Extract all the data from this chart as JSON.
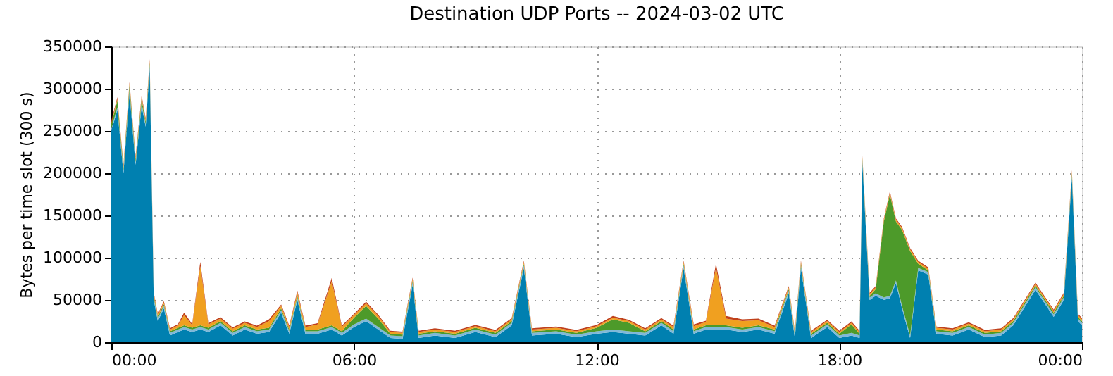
{
  "chart_data": {
    "type": "area",
    "stacked": true,
    "title": "Destination UDP Ports -- 2024-03-02 UTC",
    "ylabel": "Bytes per time slot (300 s)",
    "x": [
      0.0,
      0.15,
      0.3,
      0.45,
      0.6,
      0.75,
      0.85,
      0.95,
      1.05,
      1.15,
      1.3,
      1.45,
      1.65,
      1.8,
      2.0,
      2.2,
      2.4,
      2.7,
      3.0,
      3.3,
      3.6,
      3.9,
      4.2,
      4.4,
      4.6,
      4.8,
      5.1,
      5.45,
      5.7,
      6.0,
      6.3,
      6.6,
      6.9,
      7.2,
      7.45,
      7.6,
      8.0,
      8.5,
      9.0,
      9.5,
      9.9,
      10.2,
      10.4,
      11.0,
      11.5,
      12.0,
      12.4,
      12.8,
      13.2,
      13.6,
      13.9,
      14.15,
      14.4,
      14.7,
      14.95,
      15.2,
      15.6,
      16.0,
      16.4,
      16.75,
      16.9,
      17.05,
      17.3,
      17.7,
      18.0,
      18.3,
      18.5,
      18.57,
      18.75,
      18.9,
      19.1,
      19.25,
      19.4,
      19.55,
      19.75,
      19.95,
      20.2,
      20.4,
      20.8,
      21.2,
      21.6,
      22.0,
      22.3,
      22.85,
      23.3,
      23.55,
      23.75,
      23.9,
      24.0
    ],
    "series": [
      {
        "color": "#0080b0",
        "values": [
          250000,
          275000,
          200000,
          295000,
          210000,
          280000,
          255000,
          325000,
          50000,
          25000,
          40000,
          8000,
          12000,
          15000,
          12000,
          15000,
          12000,
          20000,
          8000,
          15000,
          10000,
          12000,
          35000,
          10000,
          50000,
          10000,
          10000,
          15000,
          8000,
          18000,
          25000,
          15000,
          5000,
          4000,
          68000,
          5000,
          8000,
          5000,
          12000,
          6000,
          20000,
          88000,
          8000,
          10000,
          6000,
          10000,
          12000,
          10000,
          8000,
          20000,
          10000,
          88000,
          10000,
          15000,
          15000,
          15000,
          12000,
          15000,
          10000,
          58000,
          5000,
          88000,
          5000,
          18000,
          5000,
          8000,
          5000,
          212000,
          50000,
          55000,
          50000,
          52000,
          70000,
          40000,
          5000,
          85000,
          80000,
          10000,
          8000,
          15000,
          6000,
          8000,
          20000,
          62000,
          30000,
          50000,
          195000,
          25000,
          20000
        ]
      },
      {
        "color": "#7fb8d8",
        "values": [
          3000,
          3000,
          3000,
          3000,
          3000,
          3000,
          3000,
          3000,
          3000,
          3000,
          3000,
          3000,
          3000,
          3000,
          3000,
          3000,
          3000,
          3000,
          3000,
          3000,
          3000,
          3000,
          3000,
          3000,
          3000,
          3000,
          3000,
          3000,
          3000,
          3000,
          3000,
          3000,
          3000,
          3000,
          3000,
          3000,
          3000,
          3000,
          3000,
          3000,
          3000,
          3000,
          3000,
          3000,
          3000,
          3000,
          3000,
          3000,
          3000,
          3000,
          3000,
          3000,
          3000,
          3000,
          3000,
          3000,
          3000,
          3000,
          3000,
          3000,
          3000,
          3000,
          3000,
          3000,
          3000,
          3000,
          3000,
          3000,
          3000,
          3000,
          3000,
          3000,
          3000,
          3000,
          3000,
          3000,
          3000,
          3000,
          3000,
          3000,
          3000,
          3000,
          3000,
          3000,
          3000,
          3000,
          3000,
          3000,
          3000
        ]
      },
      {
        "color": "#4d9a2a",
        "values": [
          5000,
          8000,
          3000,
          6000,
          3000,
          5000,
          3000,
          3000,
          2000,
          2000,
          2000,
          2000,
          2000,
          2000,
          2000,
          2000,
          2000,
          2000,
          2000,
          2000,
          2000,
          2000,
          2000,
          2000,
          2000,
          2000,
          2000,
          2000,
          2000,
          8000,
          15000,
          10000,
          2000,
          2000,
          2000,
          2000,
          2000,
          2000,
          2000,
          2000,
          2000,
          2000,
          2000,
          2000,
          2000,
          4000,
          12000,
          10000,
          2000,
          2000,
          2000,
          2000,
          2000,
          2000,
          2000,
          2000,
          2000,
          2000,
          2000,
          2000,
          2000,
          2000,
          2000,
          2000,
          2000,
          10000,
          2000,
          2000,
          2000,
          5000,
          90000,
          120000,
          70000,
          90000,
          100000,
          5000,
          2000,
          2000,
          2000,
          2000,
          2000,
          2000,
          2000,
          2000,
          2000,
          2000,
          2000,
          2000,
          2000
        ]
      },
      {
        "color": "#f0a020",
        "values": [
          2000,
          2000,
          2000,
          2000,
          2000,
          2000,
          2000,
          2000,
          2000,
          2000,
          2000,
          2000,
          3000,
          12000,
          3000,
          70000,
          4000,
          3000,
          3000,
          3000,
          3000,
          8000,
          3000,
          3000,
          4000,
          3000,
          6000,
          52000,
          5000,
          3000,
          3000,
          3000,
          2000,
          2000,
          2000,
          2000,
          2000,
          2000,
          2000,
          2000,
          2000,
          2000,
          2000,
          2000,
          2000,
          2000,
          2000,
          2000,
          2000,
          2000,
          3000,
          2000,
          4000,
          4000,
          68000,
          8000,
          8000,
          6000,
          3000,
          2000,
          2000,
          2000,
          2000,
          2000,
          2000,
          2000,
          2000,
          2000,
          2000,
          2000,
          2000,
          2000,
          2000,
          2000,
          2000,
          2000,
          2000,
          2000,
          2000,
          2000,
          2000,
          2000,
          2000,
          2000,
          2000,
          2000,
          2000,
          2000,
          2000
        ]
      },
      {
        "color": "#c0401a",
        "values": [
          2000,
          2000,
          2000,
          2000,
          2000,
          2000,
          2000,
          2000,
          1500,
          1500,
          1500,
          1500,
          1500,
          3000,
          1500,
          5000,
          1500,
          1500,
          1500,
          1500,
          1500,
          2000,
          1500,
          1500,
          2000,
          1500,
          1500,
          4000,
          1500,
          1500,
          2000,
          1500,
          1500,
          1500,
          1500,
          1500,
          1500,
          1500,
          1500,
          1500,
          1500,
          1500,
          1500,
          1500,
          1500,
          1500,
          2000,
          1500,
          1500,
          1500,
          1500,
          1500,
          2000,
          1500,
          5000,
          3000,
          2000,
          2000,
          1500,
          1500,
          1500,
          1500,
          1500,
          1500,
          1500,
          1500,
          1500,
          1500,
          1500,
          1500,
          1500,
          1500,
          1500,
          1500,
          1500,
          1500,
          1500,
          1500,
          1500,
          1500,
          1500,
          1500,
          1500,
          1500,
          1500,
          1500,
          1500,
          1500,
          1500
        ]
      }
    ],
    "xlim": [
      0,
      24
    ],
    "xticks": [
      {
        "value": 0,
        "label": "00:00"
      },
      {
        "value": 6,
        "label": "06:00"
      },
      {
        "value": 12,
        "label": "12:00"
      },
      {
        "value": 18,
        "label": "18:00"
      },
      {
        "value": 24,
        "label": "00:00"
      }
    ],
    "ylim": [
      0,
      350000
    ],
    "yticks": [
      0,
      50000,
      100000,
      150000,
      200000,
      250000,
      300000,
      350000
    ],
    "grid": true,
    "legend": false
  }
}
